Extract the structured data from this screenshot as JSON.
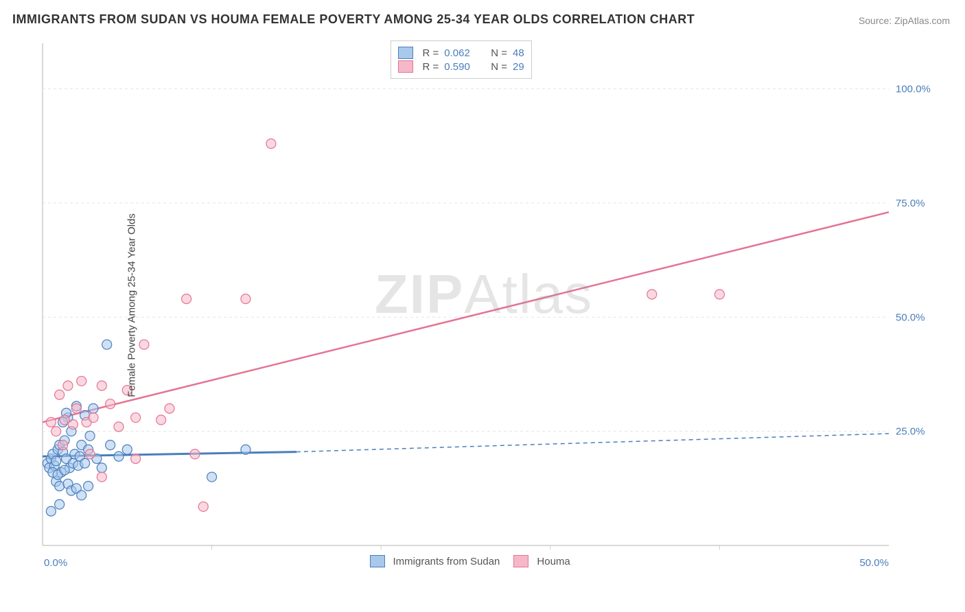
{
  "title": "IMMIGRANTS FROM SUDAN VS HOUMA FEMALE POVERTY AMONG 25-34 YEAR OLDS CORRELATION CHART",
  "source": "Source: ZipAtlas.com",
  "watermark": "ZIPAtlas",
  "y_axis_label": "Female Poverty Among 25-34 Year Olds",
  "chart": {
    "type": "scatter",
    "xlim": [
      0,
      50
    ],
    "ylim": [
      0,
      110
    ],
    "x_ticks": [
      0,
      50
    ],
    "x_tick_labels": [
      "0.0%",
      "50.0%"
    ],
    "y_ticks": [
      25,
      50,
      75,
      100
    ],
    "y_tick_labels": [
      "25.0%",
      "50.0%",
      "75.0%",
      "100.0%"
    ],
    "background_color": "#ffffff",
    "grid_color": "#e5e5e5",
    "axis_color": "#cccccc",
    "tick_label_color": "#4a7ebb",
    "marker_radius": 7,
    "marker_opacity": 0.55
  },
  "series": [
    {
      "name": "Immigrants from Sudan",
      "color_fill": "#a8c8ec",
      "color_stroke": "#4a7ebb",
      "R": "0.062",
      "N": "48",
      "trend": {
        "x1": 0,
        "y1": 19.5,
        "x2_solid": 15,
        "y2_solid": 20.5,
        "x2": 50,
        "y2": 24.5,
        "dashed_after_solid": true,
        "stroke_width": 3
      },
      "points": [
        [
          0.3,
          18
        ],
        [
          0.4,
          17
        ],
        [
          0.5,
          19
        ],
        [
          0.6,
          20
        ],
        [
          0.7,
          17.5
        ],
        [
          0.8,
          18.5
        ],
        [
          0.9,
          21
        ],
        [
          1.0,
          22
        ],
        [
          1.1,
          16
        ],
        [
          1.2,
          20.5
        ],
        [
          1.3,
          23
        ],
        [
          1.4,
          19
        ],
        [
          1.5,
          28
        ],
        [
          1.6,
          17
        ],
        [
          1.7,
          25
        ],
        [
          1.8,
          18
        ],
        [
          1.9,
          20
        ],
        [
          2.0,
          30.5
        ],
        [
          2.1,
          17.5
        ],
        [
          2.2,
          19.5
        ],
        [
          2.3,
          22
        ],
        [
          2.5,
          18
        ],
        [
          2.7,
          21
        ],
        [
          2.8,
          24
        ],
        [
          3.0,
          30
        ],
        [
          3.2,
          19
        ],
        [
          3.5,
          17
        ],
        [
          3.8,
          44
        ],
        [
          4.0,
          22
        ],
        [
          4.5,
          19.5
        ],
        [
          5.0,
          21
        ],
        [
          0.8,
          14
        ],
        [
          1.0,
          13
        ],
        [
          1.5,
          13.5
        ],
        [
          1.7,
          12
        ],
        [
          1.0,
          9
        ],
        [
          2.0,
          12.5
        ],
        [
          2.3,
          11
        ],
        [
          2.7,
          13
        ],
        [
          0.5,
          7.5
        ],
        [
          1.2,
          27
        ],
        [
          1.4,
          29
        ],
        [
          2.5,
          28.5
        ],
        [
          10.0,
          15
        ],
        [
          12.0,
          21
        ],
        [
          0.6,
          16
        ],
        [
          0.9,
          15.5
        ],
        [
          1.3,
          16.5
        ]
      ]
    },
    {
      "name": "Houma",
      "color_fill": "#f5b8c8",
      "color_stroke": "#e57393",
      "R": "0.590",
      "N": "29",
      "trend": {
        "x1": 0,
        "y1": 27,
        "x2_solid": 50,
        "y2_solid": 73,
        "x2": 50,
        "y2": 73,
        "dashed_after_solid": false,
        "stroke_width": 2.5
      },
      "points": [
        [
          0.5,
          27
        ],
        [
          0.8,
          25
        ],
        [
          1.0,
          33
        ],
        [
          1.3,
          27.5
        ],
        [
          1.5,
          35
        ],
        [
          1.8,
          26.5
        ],
        [
          2.0,
          30
        ],
        [
          2.3,
          36
        ],
        [
          2.6,
          27
        ],
        [
          3.0,
          28
        ],
        [
          3.5,
          35
        ],
        [
          4.0,
          31
        ],
        [
          4.5,
          26
        ],
        [
          5.0,
          34
        ],
        [
          5.5,
          28
        ],
        [
          6.0,
          44
        ],
        [
          7.0,
          27.5
        ],
        [
          7.5,
          30
        ],
        [
          8.5,
          54
        ],
        [
          9.0,
          20
        ],
        [
          12.0,
          54
        ],
        [
          3.5,
          15
        ],
        [
          5.5,
          19
        ],
        [
          1.2,
          22
        ],
        [
          2.8,
          20
        ],
        [
          9.5,
          8.5
        ],
        [
          36,
          55
        ],
        [
          40,
          55
        ],
        [
          13.5,
          88
        ]
      ]
    }
  ],
  "legend_top": {
    "rows": [
      {
        "swatch_fill": "#a8c8ec",
        "swatch_stroke": "#4a7ebb",
        "R_label": "R =",
        "R_val": "0.062",
        "N_label": "N =",
        "N_val": "48"
      },
      {
        "swatch_fill": "#f5b8c8",
        "swatch_stroke": "#e57393",
        "R_label": "R =",
        "R_val": "0.590",
        "N_label": "N =",
        "N_val": "29"
      }
    ],
    "label_color": "#555",
    "value_color": "#4a7ebb"
  },
  "legend_bottom": [
    {
      "swatch_fill": "#a8c8ec",
      "swatch_stroke": "#4a7ebb",
      "label": "Immigrants from Sudan"
    },
    {
      "swatch_fill": "#f5b8c8",
      "swatch_stroke": "#e57393",
      "label": "Houma"
    }
  ]
}
